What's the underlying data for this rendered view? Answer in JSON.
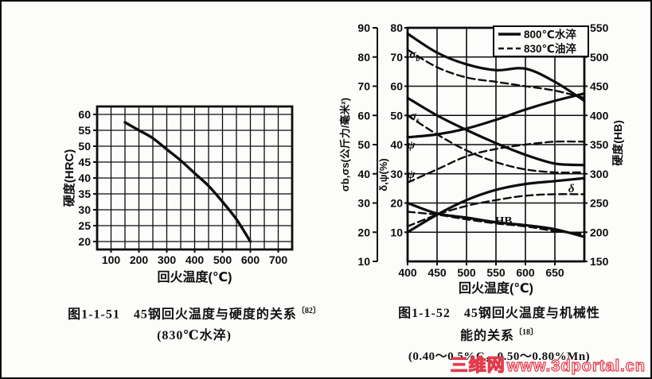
{
  "page": {
    "watermark": {
      "brand": "三维网",
      "url": "www.3dportal.cn",
      "color": "#e23b4c"
    }
  },
  "fig51": {
    "caption_title": "图1-1-51　45钢回火温度与硬度的关系",
    "caption_ref": "〔82〕",
    "caption_sub": "(830℃水淬)"
  },
  "fig52": {
    "caption_title": "图1-1-52　45钢回火温度与机械性",
    "caption_line2": "能的关系",
    "caption_ref": "〔18〕",
    "caption_sub": "(0.40～0.5%C，0.50～0.80%Mn)"
  },
  "chart_data": [
    {
      "id": "fig-1-1-51",
      "type": "line",
      "title": "45钢回火温度与硬度的关系 (830℃水淬)",
      "xlabel": "回火温度(℃)",
      "ylabel": "硬度(HRC)",
      "xlim": [
        50,
        750
      ],
      "ylim": [
        17.5,
        62.5
      ],
      "xticks": [
        100,
        200,
        300,
        400,
        500,
        600,
        700
      ],
      "yticks": [
        20,
        25,
        30,
        35,
        40,
        45,
        50,
        55,
        60
      ],
      "xgrid_step": 50,
      "ygrid_step": 5,
      "grid": true,
      "legend": null,
      "series": [
        {
          "name": "硬度HRC",
          "style": "solid",
          "x": [
            150,
            200,
            250,
            300,
            350,
            400,
            450,
            500,
            550,
            600
          ],
          "y": [
            57.5,
            55,
            52.5,
            49,
            45.5,
            41.5,
            37.5,
            32.5,
            27,
            20
          ]
        }
      ]
    },
    {
      "id": "fig-1-1-52",
      "type": "line",
      "title": "45钢回火温度与机械性能的关系",
      "xlabel": "回火温度(℃)",
      "xlim": [
        400,
        700
      ],
      "xticks": [
        400,
        450,
        500,
        550,
        600,
        650
      ],
      "grid": true,
      "axes": [
        {
          "id": "sigma",
          "label": "σb,σs(公斤力/毫米²)",
          "side": "left-outer",
          "min": 10,
          "max": 90,
          "ticks": [
            10,
            20,
            30,
            40,
            50,
            60,
            70,
            80,
            90
          ]
        },
        {
          "id": "percent",
          "label": "δ,ψ(%)",
          "side": "left-inner",
          "min": 0,
          "max": 80,
          "ticks": [
            10,
            20,
            30,
            40,
            50,
            60,
            70,
            80
          ]
        },
        {
          "id": "hb",
          "label": "硬度(HB)",
          "side": "right",
          "min": 150,
          "max": 550,
          "ticks": [
            150,
            200,
            250,
            300,
            350,
            400,
            450,
            500,
            550
          ]
        }
      ],
      "legend": {
        "position": "top-right",
        "items": [
          {
            "label": "800℃水淬",
            "style": "solid"
          },
          {
            "label": "830℃油淬",
            "style": "dashed"
          }
        ]
      },
      "x": [
        400,
        450,
        500,
        550,
        600,
        650,
        700
      ],
      "series": [
        {
          "name": "σb 800℃水淬",
          "axis": "sigma",
          "style": "solid",
          "values": [
            88,
            81.5,
            77.5,
            75.5,
            76,
            71.5,
            65
          ]
        },
        {
          "name": "σb 830℃油淬",
          "axis": "sigma",
          "style": "dashed",
          "values": [
            82.5,
            76.5,
            73,
            71.5,
            70,
            68.5,
            66
          ]
        },
        {
          "name": "σs 800℃水淬",
          "axis": "sigma",
          "style": "solid",
          "values": [
            66,
            60,
            55,
            50.5,
            46.5,
            43.5,
            43
          ]
        },
        {
          "name": "σs 830℃油淬",
          "axis": "sigma",
          "style": "dashed",
          "values": [
            60,
            53.5,
            48,
            44,
            41.5,
            40.5,
            40.5
          ]
        },
        {
          "name": "ψ 800℃水淬",
          "axis": "percent",
          "style": "solid",
          "values": [
            42.5,
            43.5,
            45.5,
            48.5,
            52,
            55,
            57.5
          ]
        },
        {
          "name": "ψ 830℃油淬",
          "axis": "percent",
          "style": "dashed",
          "values": [
            27,
            31.5,
            36,
            38.5,
            40,
            41,
            41
          ]
        },
        {
          "name": "δ 800℃水淬",
          "axis": "percent",
          "style": "solid",
          "values": [
            10,
            16,
            21,
            24.5,
            26.5,
            27.5,
            28.5
          ]
        },
        {
          "name": "δ 830℃油淬",
          "axis": "percent",
          "style": "dashed",
          "values": [
            12,
            16,
            19,
            21,
            22.5,
            23,
            23
          ]
        },
        {
          "name": "HB 800℃水淬",
          "axis": "hb",
          "style": "solid",
          "values": [
            250,
            232,
            225,
            217,
            212,
            205,
            192
          ]
        },
        {
          "name": "HB 830℃油淬",
          "axis": "hb",
          "style": "dashed",
          "values": [
            235,
            230,
            222,
            215,
            210,
            202,
            197
          ]
        }
      ],
      "curve_labels": [
        {
          "text": "σ",
          "sub": "b",
          "x": 412,
          "axis": "percent",
          "y": 71
        },
        {
          "text": "σ",
          "sub": "s",
          "x": 412,
          "axis": "percent",
          "y": 50
        },
        {
          "text": "ψ",
          "sub": "",
          "x": 406,
          "axis": "percent",
          "y": 40
        },
        {
          "text": "ψ",
          "sub": "",
          "x": 406,
          "axis": "percent",
          "y": 30
        },
        {
          "text": "δ",
          "sub": "",
          "x": 678,
          "axis": "percent",
          "y": 25
        },
        {
          "text": "HB",
          "sub": "",
          "x": 563,
          "axis": "percent",
          "y": 14
        }
      ]
    }
  ]
}
